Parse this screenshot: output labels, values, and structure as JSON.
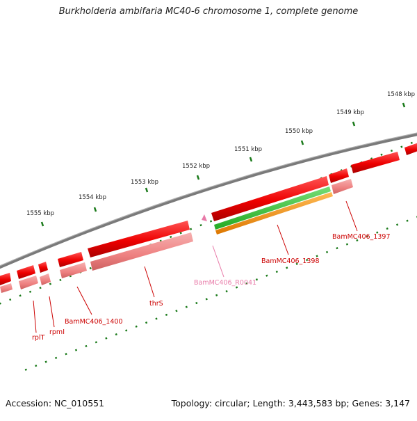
{
  "title": "Burkholderia ambifaria MC40-6 chromosome 1, complete genome",
  "accession": "Accession: NC_010551",
  "summary": "Topology: circular; Length: 3,443,583 bp; Genes: 3,147",
  "ticks": [
    "1555 kbp",
    "1554 kbp",
    "1553 kbp",
    "1552 kbp",
    "1551 kbp",
    "1550 kbp",
    "1549 kbp",
    "1548 kbp"
  ],
  "genes": [
    {
      "label": "rplT",
      "color": "#cc0000"
    },
    {
      "label": "rpmI",
      "color": "#cc0000"
    },
    {
      "label": "BamMC406_1400",
      "color": "#cc0000"
    },
    {
      "label": "thrS",
      "color": "#cc0000"
    },
    {
      "label": "BamMC406_R0041",
      "color": "#e87aa8"
    },
    {
      "label": "BamMC406_1398",
      "color": "#cc0000"
    },
    {
      "label": "BamMC406_1397",
      "color": "#cc0000"
    }
  ],
  "colors": {
    "cds": "#ee0000",
    "gene": "#f08080",
    "rna": "#e87aa8",
    "green_track": "#33bb33",
    "orange_track": "#ee8800",
    "backbone": "#808080",
    "tick": "#1a7a1a"
  }
}
